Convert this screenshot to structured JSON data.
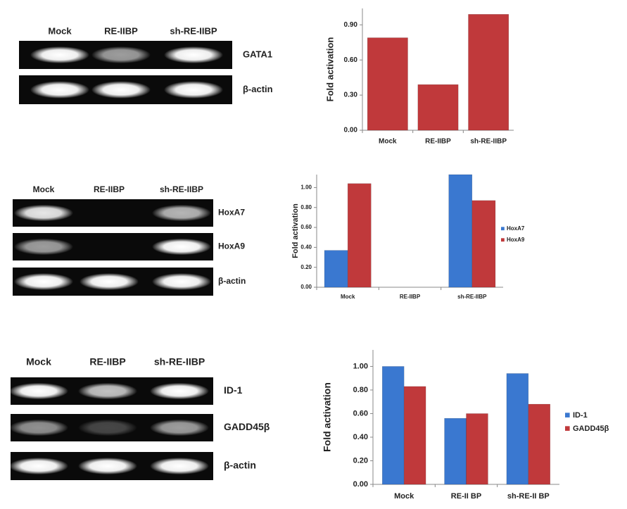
{
  "gels": [
    {
      "lanes": [
        "Mock",
        "RE-IIBP",
        "sh-RE-IIBP"
      ],
      "bands": [
        "GATA1",
        "β-actin"
      ]
    },
    {
      "lanes": [
        "Mock",
        "RE-IIBP",
        "sh-RE-IIBP"
      ],
      "bands": [
        "HoxA7",
        "HoxA9",
        "β-actin"
      ]
    },
    {
      "lanes": [
        "Mock",
        "RE-IIBP",
        "sh-RE-IIBP"
      ],
      "bands": [
        "ID-1",
        "GADD45β",
        "β-actin"
      ]
    }
  ],
  "chart_data": [
    {
      "type": "bar",
      "y_label": "Fold activation",
      "categories": [
        "Mock",
        "RE-IIBP",
        "sh-RE-IIBP"
      ],
      "values": [
        0.79,
        0.39,
        0.99
      ],
      "color": "#c0393b",
      "ylim": [
        0,
        1.04
      ],
      "yticks": [
        {
          "value": 0,
          "label": "0.00"
        },
        {
          "value": 0.3,
          "label": "0.30"
        },
        {
          "value": 0.6,
          "label": "0.60"
        },
        {
          "value": 0.9,
          "label": "0.90"
        }
      ]
    },
    {
      "type": "bar",
      "y_label": "Fold activation",
      "categories": [
        "Mock",
        "RE-IIBP",
        "sh-RE-IIBP"
      ],
      "series": [
        {
          "name": "HoxA7",
          "color": "#3a78d0",
          "values": [
            0.37,
            0,
            1.13
          ]
        },
        {
          "name": "HoxA9",
          "color": "#c0393b",
          "values": [
            1.04,
            0,
            0.87
          ]
        }
      ],
      "ylim": [
        0,
        1.13
      ],
      "yticks": [
        {
          "value": 0,
          "label": "0.00"
        },
        {
          "value": 0.2,
          "label": "0.20"
        },
        {
          "value": 0.4,
          "label": "0.40"
        },
        {
          "value": 0.6,
          "label": "0.60"
        },
        {
          "value": 0.8,
          "label": "0.80"
        },
        {
          "value": 1,
          "label": "1.00"
        }
      ],
      "legend": "right"
    },
    {
      "type": "bar",
      "y_label": "Fold activation",
      "categories": [
        "Mock",
        "RE-II BP",
        "sh-RE-II BP"
      ],
      "series": [
        {
          "name": "ID-1",
          "color": "#3a78d0",
          "values": [
            1.0,
            0.56,
            0.94
          ]
        },
        {
          "name": "GADD45β",
          "color": "#c0393b",
          "values": [
            0.83,
            0.6,
            0.68
          ]
        }
      ],
      "ylim": [
        0,
        1.14
      ],
      "yticks": [
        {
          "value": 0,
          "label": "0.00"
        },
        {
          "value": 0.2,
          "label": "0.20"
        },
        {
          "value": 0.4,
          "label": "0.40"
        },
        {
          "value": 0.6,
          "label": "0.60"
        },
        {
          "value": 0.8,
          "label": "0.80"
        },
        {
          "value": 1,
          "label": "1.00"
        }
      ],
      "legend": "right"
    }
  ]
}
